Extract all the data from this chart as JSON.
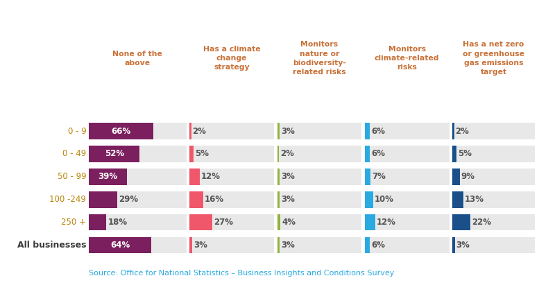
{
  "rows": [
    "0 - 9",
    "0 - 49",
    "50 - 99",
    "100 -249",
    "250 +",
    "All businesses"
  ],
  "columns": [
    "None of the\nabove",
    "Has a climate\nchange\nstrategy",
    "Monitors\nnature or\nbiodiversity-\nrelated risks",
    "Monitors\nclimate-related\nrisks",
    "Has a net zero\nor greenhouse\ngas emissions\ntarget"
  ],
  "values": [
    [
      66,
      2,
      3,
      6,
      2
    ],
    [
      52,
      5,
      2,
      6,
      5
    ],
    [
      39,
      12,
      3,
      7,
      9
    ],
    [
      29,
      16,
      3,
      10,
      13
    ],
    [
      18,
      27,
      4,
      12,
      22
    ],
    [
      64,
      3,
      3,
      6,
      3
    ]
  ],
  "labels": [
    [
      "66%",
      "2%",
      "3%",
      "6%",
      "2%"
    ],
    [
      "52%",
      "5%",
      "2%",
      "6%",
      "5%"
    ],
    [
      "39%",
      "12%",
      "3%",
      "7%",
      "9%"
    ],
    [
      "29%",
      "16%",
      "3%",
      "10%",
      "13%"
    ],
    [
      "18%",
      "27%",
      "4%",
      "12%",
      "22%"
    ],
    [
      "64%",
      "3%",
      "3%",
      "6%",
      "3%"
    ]
  ],
  "bar_colors": [
    "#7b1f5e",
    "#f0576a",
    "#8fb33b",
    "#29aae1",
    "#1a4f8a"
  ],
  "bg_color": "#e8e8e8",
  "source_text": "Source: Office for National Statistics – Business Insights and Conditions Survey",
  "source_color": "#29aae1",
  "row_label_color_age": "#b8860b",
  "row_label_color_all": "#3a3a3a",
  "header_color": "#c87137",
  "text_color_dark": "#555555",
  "text_color_white": "#ffffff"
}
